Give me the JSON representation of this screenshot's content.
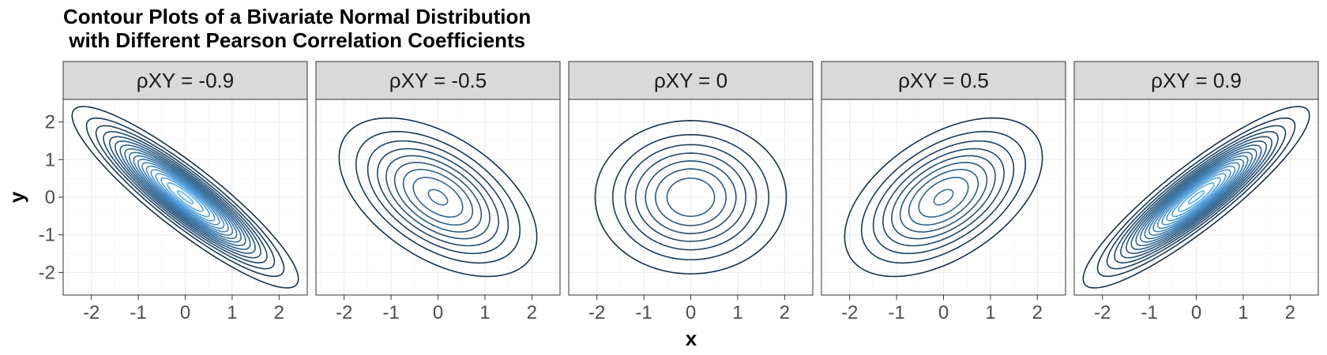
{
  "chart_data": {
    "type": "contour",
    "title": "Contour Plots of a Bivariate Normal Distribution\n with Different Pearson Correlation Coefficients",
    "xlabel": "x",
    "ylabel": "y",
    "xlim": [
      -2.6,
      2.6
    ],
    "ylim": [
      -2.6,
      2.6
    ],
    "x_ticks": [
      -2,
      -1,
      0,
      1,
      2
    ],
    "y_ticks": [
      -2,
      -1,
      0,
      1,
      2
    ],
    "x_tick_labels": [
      "-2",
      "-1",
      "0",
      "1",
      "2"
    ],
    "y_tick_labels": [
      "-2",
      "-1",
      "0",
      "1",
      "2"
    ],
    "panels": [
      {
        "label": "ρXY = -0.9",
        "rho": -0.9
      },
      {
        "label": "ρXY = -0.5",
        "rho": -0.5
      },
      {
        "label": "ρXY = 0",
        "rho": 0
      },
      {
        "label": "ρXY = 0.5",
        "rho": 0.5
      },
      {
        "label": "ρXY = 0.9",
        "rho": 0.9
      }
    ],
    "contour_density_step": 0.02,
    "contour_max_density": 0.36,
    "color_low": "#132b43",
    "color_high": "#56b1f7",
    "grid": true
  }
}
